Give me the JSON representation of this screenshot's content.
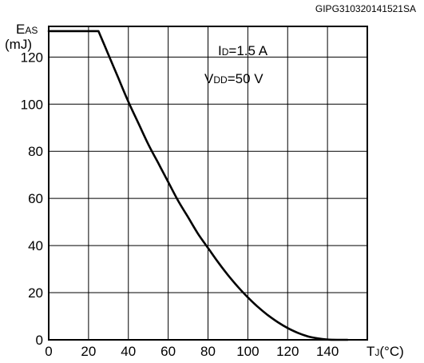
{
  "figure_id": "GIPG310320141521SA",
  "chart_data": {
    "type": "line",
    "ylabel": {
      "main": "E",
      "sub": "AS",
      "unit": "(mJ)"
    },
    "xlabel": {
      "main": "T",
      "sub": "J",
      "unit": "(°C)"
    },
    "xlim": [
      0,
      160
    ],
    "ylim": [
      0,
      133
    ],
    "x_ticks": [
      0,
      20,
      40,
      60,
      80,
      100,
      120,
      140
    ],
    "x_tick_labels": [
      "0",
      "20",
      "40",
      "60",
      "80",
      "100",
      "120",
      "140"
    ],
    "y_ticks": [
      0,
      20,
      40,
      60,
      80,
      100,
      120
    ],
    "y_tick_labels": [
      "0",
      "20",
      "40",
      "60",
      "80",
      "100",
      "120"
    ],
    "x_gridlines": [
      20,
      40,
      60,
      80,
      100,
      120,
      140
    ],
    "y_gridlines": [
      20,
      40,
      60,
      80,
      100,
      120
    ],
    "grid": true,
    "annotations": [
      {
        "main": "I",
        "sub": "D",
        "value": "=1.5 A"
      },
      {
        "main": "V",
        "sub": "DD",
        "value": "=50 V"
      }
    ],
    "series": [
      {
        "x": [
          0,
          25,
          30,
          35,
          40,
          45,
          50,
          55,
          60,
          65,
          70,
          75,
          80,
          85,
          90,
          95,
          100,
          105,
          110,
          115,
          120,
          125,
          130,
          135,
          140,
          145,
          150
        ],
        "y": [
          131,
          131,
          121,
          111,
          101,
          92,
          83,
          75,
          67,
          59,
          52,
          45,
          39,
          33,
          27.5,
          22.5,
          18,
          14,
          10.5,
          7.5,
          5,
          3,
          1.5,
          0.6,
          0.1,
          0,
          0
        ]
      }
    ]
  }
}
